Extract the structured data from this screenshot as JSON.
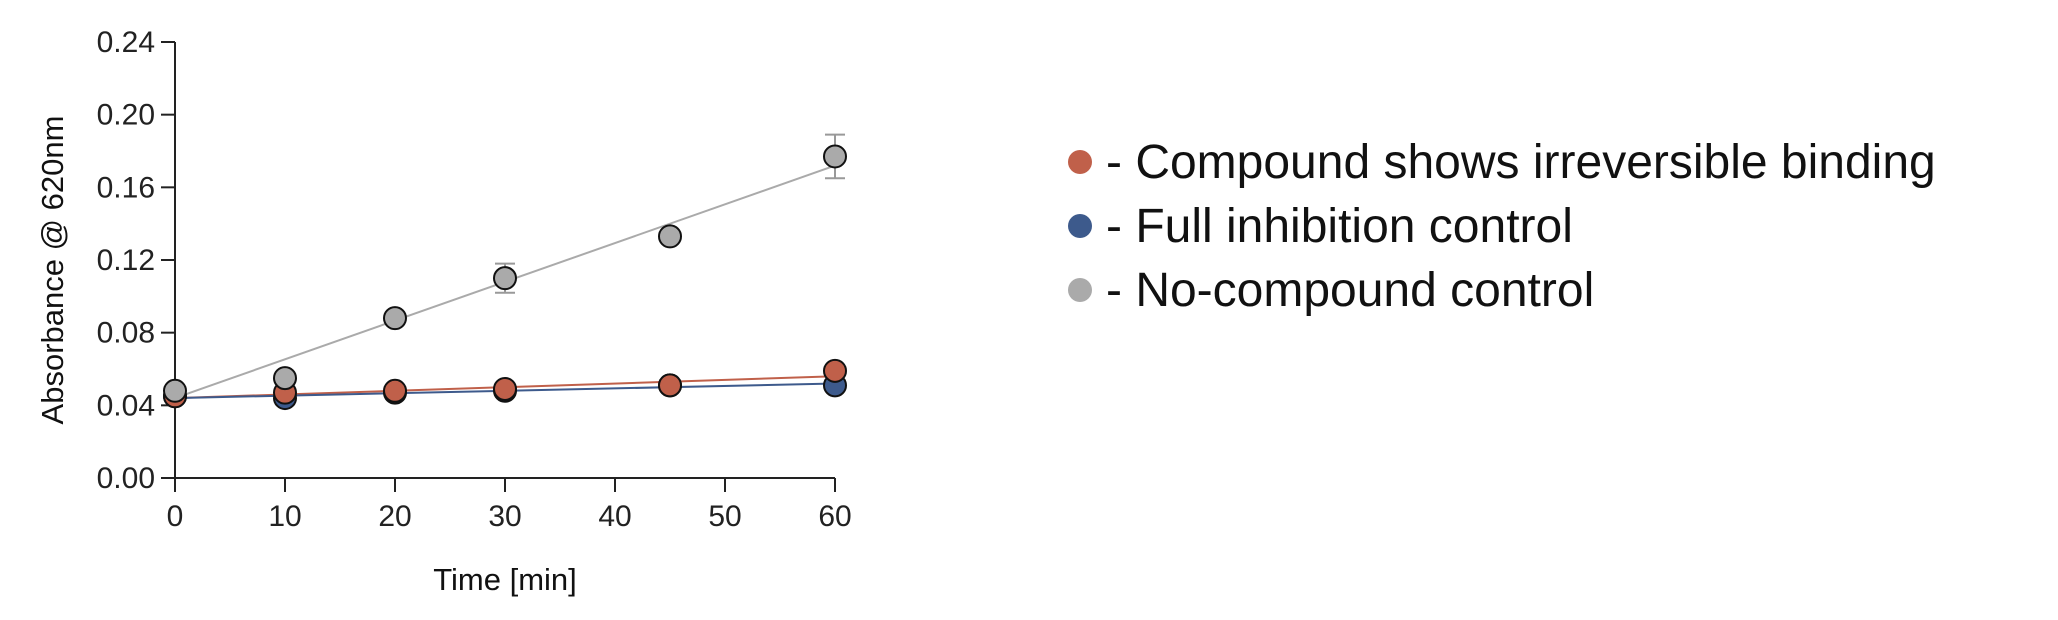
{
  "chart_data": {
    "type": "scatter",
    "xlabel": "Time [min]",
    "ylabel": "Absorbance @ 620nm",
    "xlim": [
      0,
      60
    ],
    "ylim": [
      0,
      0.24
    ],
    "x_ticks": [
      "0",
      "10",
      "20",
      "30",
      "40",
      "50",
      "60"
    ],
    "y_ticks": [
      "0.00",
      "0.04",
      "0.08",
      "0.12",
      "0.16",
      "0.20",
      "0.24"
    ],
    "grid": false,
    "legend_position": "right",
    "series": [
      {
        "name": "- Compound shows irreversible binding",
        "color": "#c0604a",
        "x": [
          0,
          10,
          20,
          30,
          45,
          60
        ],
        "y": [
          0.045,
          0.047,
          0.048,
          0.049,
          0.051,
          0.059
        ],
        "fit": [
          0.044,
          0.056
        ]
      },
      {
        "name": "- Full inhibition control",
        "color": "#3d5a8c",
        "x": [
          0,
          10,
          20,
          30,
          45,
          60
        ],
        "y": [
          0.045,
          0.044,
          0.047,
          0.048,
          0.051,
          0.051
        ],
        "fit": [
          0.044,
          0.052
        ]
      },
      {
        "name": "- No-compound control",
        "color": "#aaaaaa",
        "x": [
          0,
          10,
          20,
          30,
          45,
          60
        ],
        "y": [
          0.048,
          0.055,
          0.088,
          0.11,
          0.133,
          0.177
        ],
        "err": [
          0.0,
          0.0,
          0.0,
          0.008,
          0.0,
          0.012
        ],
        "fit": [
          0.044,
          0.172
        ]
      }
    ]
  }
}
